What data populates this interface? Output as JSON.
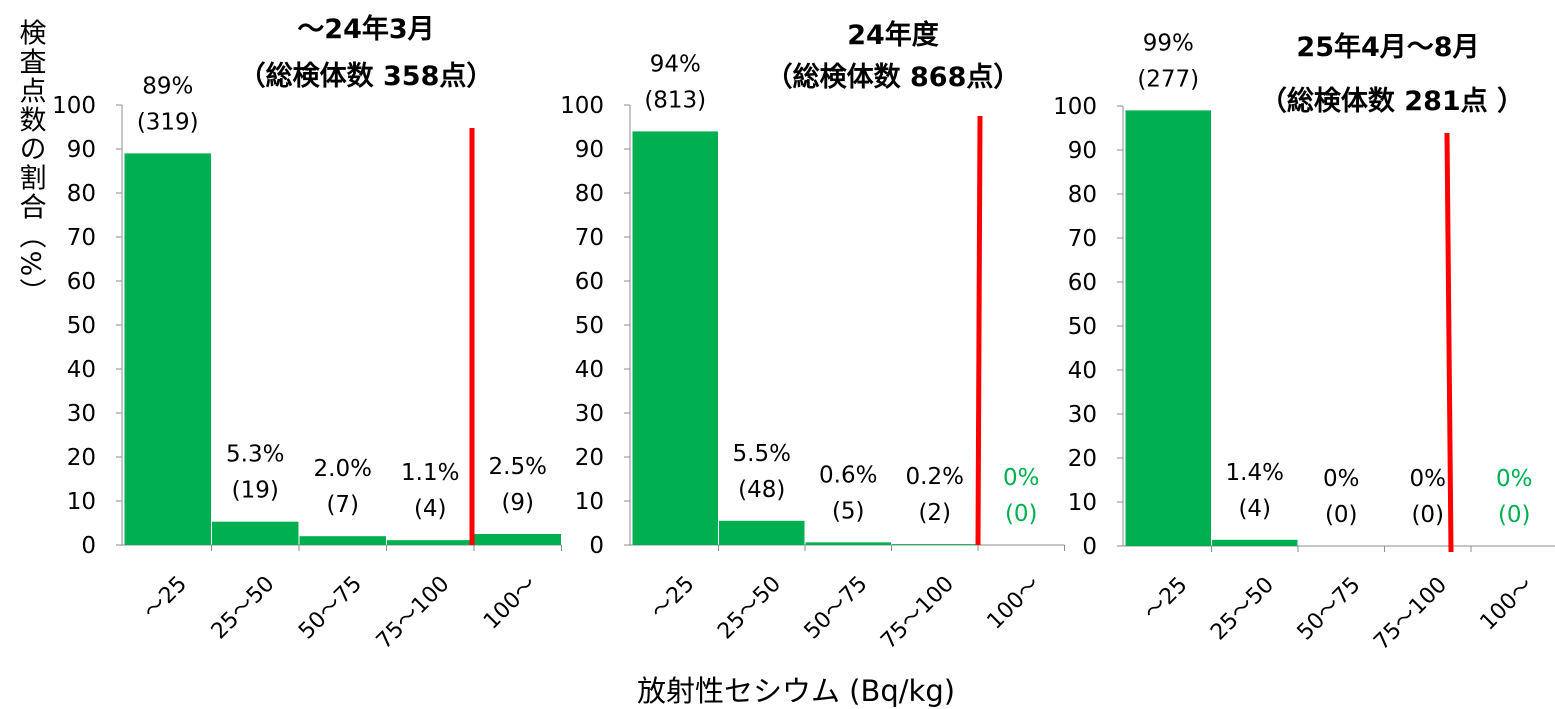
{
  "figure": {
    "ylabel": "検査点数の割合（%）",
    "xlabel": "放射性セシウム (Bq/kg)",
    "bar_color": "#00b050",
    "limit_line_color": "#ff0000",
    "zero_label_color": "#00b050"
  },
  "chart_data": [
    {
      "type": "bar",
      "title": "～24年3月",
      "subtitle": "（総検体数 358点）",
      "categories": [
        "～25",
        "25～50",
        "50～75",
        "75～100",
        "100～"
      ],
      "values": [
        89,
        5.3,
        2.0,
        1.1,
        2.5
      ],
      "value_labels": [
        "89%",
        "5.3%",
        "2.0%",
        "1.1%",
        "2.5%"
      ],
      "count_labels": [
        "(319)",
        "(19)",
        "(7)",
        "(4)",
        "(9)"
      ],
      "yticks": [
        "0",
        "10",
        "20",
        "30",
        "40",
        "50",
        "60",
        "70",
        "80",
        "90",
        "100"
      ],
      "ylim": [
        0,
        100
      ],
      "limit_line_at": "100",
      "grid": false
    },
    {
      "type": "bar",
      "title": "24年度",
      "subtitle": "（総検体数 868点）",
      "categories": [
        "～25",
        "25～50",
        "50～75",
        "75～100",
        "100～"
      ],
      "values": [
        94,
        5.5,
        0.6,
        0.2,
        0
      ],
      "value_labels": [
        "94%",
        "5.5%",
        "0.6%",
        "0.2%",
        "0%"
      ],
      "count_labels": [
        "(813)",
        "(48)",
        "(5)",
        "(2)",
        "(0)"
      ],
      "yticks": [
        "0",
        "10",
        "20",
        "30",
        "40",
        "50",
        "60",
        "70",
        "80",
        "90",
        "100"
      ],
      "ylim": [
        0,
        100
      ],
      "limit_line_at": "100",
      "grid": false
    },
    {
      "type": "bar",
      "title": "25年4月～8月",
      "subtitle": "（総検体数 281点 ）",
      "categories": [
        "～25",
        "25～50",
        "50～75",
        "75～100",
        "100～"
      ],
      "values": [
        99,
        1.4,
        0,
        0,
        0
      ],
      "value_labels": [
        "99%",
        "1.4%",
        "0%",
        "0%",
        "0%"
      ],
      "count_labels": [
        "(277)",
        "(4)",
        "(0)",
        "(0)",
        "(0)"
      ],
      "yticks": [
        "0",
        "10",
        "20",
        "30",
        "40",
        "50",
        "60",
        "70",
        "80",
        "90",
        "100"
      ],
      "ylim": [
        0,
        100
      ],
      "limit_line_at": "100",
      "grid": false
    }
  ]
}
